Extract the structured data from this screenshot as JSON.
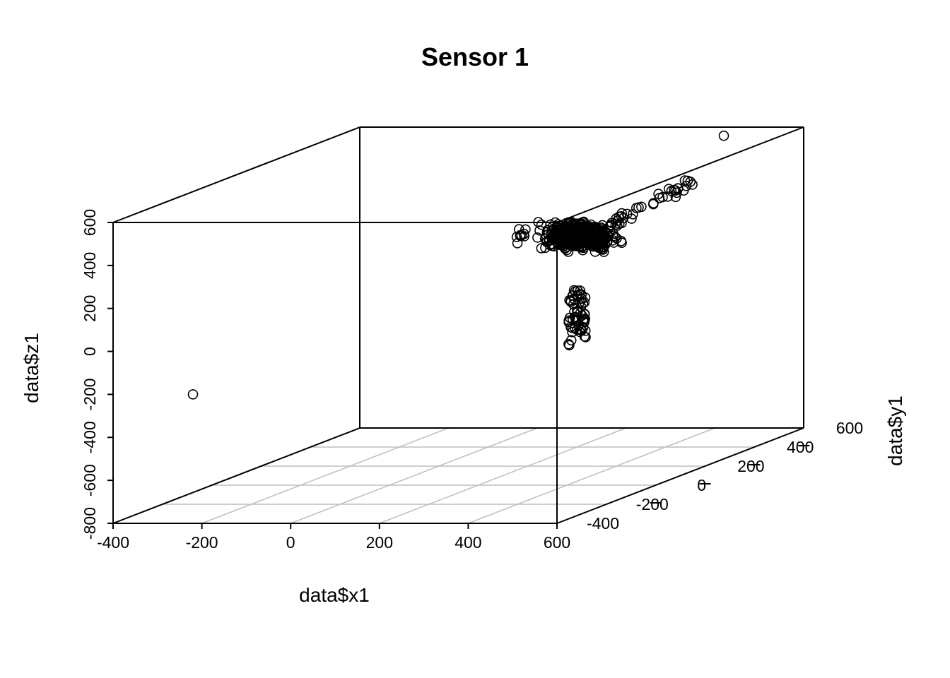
{
  "chart_data": {
    "type": "scatter3d",
    "title": "Sensor 1",
    "xlabel": "data$x1",
    "ylabel": "data$y1",
    "zlabel": "data$z1",
    "xlim": [
      -400,
      600
    ],
    "ylim": [
      -400,
      600
    ],
    "zlim": [
      -800,
      600
    ],
    "xticks": [
      "-400",
      "-200",
      "0",
      "200",
      "400",
      "600"
    ],
    "yticks": [
      "-400",
      "-200",
      "0",
      "200",
      "400",
      "600"
    ],
    "zticks": [
      "-800",
      "-600",
      "-400",
      "-200",
      "0",
      "200",
      "400",
      "600"
    ],
    "grid": true,
    "grid_plane": "floor",
    "box": true,
    "marker": "open-circle",
    "outliers": [
      {
        "x": -220,
        "y": -400,
        "z": -200
      },
      {
        "x": 600,
        "y": -400,
        "z": 530
      },
      {
        "x": 420,
        "y": 600,
        "z": 560
      }
    ],
    "main_cluster": {
      "center": {
        "x": 100,
        "y": 600,
        "z": 100
      },
      "spread": {
        "x": 70,
        "y": 60,
        "z": 50
      },
      "approx_points": 420
    },
    "tail_cluster": {
      "x_range": [
        80,
        120
      ],
      "y": 580,
      "z_range": [
        -410,
        -150
      ],
      "approx_points": 60
    },
    "colors": {
      "points": "#000000",
      "box": "#000000",
      "grid": "#bebebe"
    }
  }
}
